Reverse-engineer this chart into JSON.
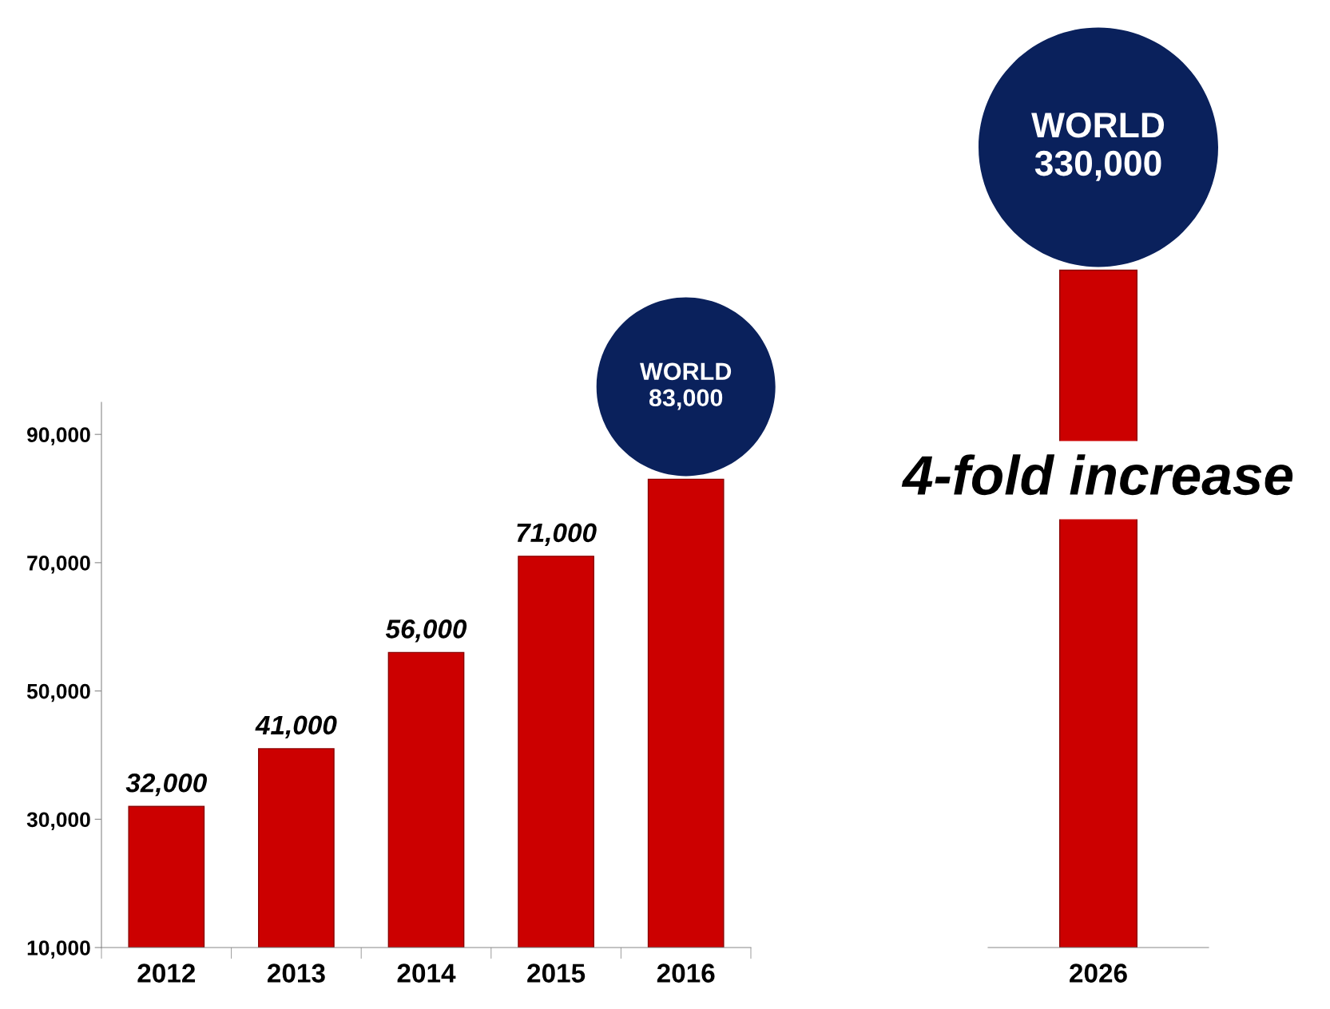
{
  "chart_data": [
    {
      "type": "bar",
      "categories": [
        "2012",
        "2013",
        "2014",
        "2015",
        "2016"
      ],
      "values": [
        32000,
        41000,
        56000,
        71000,
        83000
      ],
      "color": "#cc0000",
      "ylim": [
        10000,
        95000
      ],
      "yticks": [
        {
          "value": 10000,
          "label": "10,000"
        },
        {
          "value": 30000,
          "label": "30,000"
        },
        {
          "value": 50000,
          "label": "50,000"
        },
        {
          "value": 70000,
          "label": "70,000"
        },
        {
          "value": 90000,
          "label": "90,000"
        }
      ],
      "value_labels": [
        "32,000",
        "41,000",
        "56,000",
        "71,000",
        "WORLD\n83,000"
      ],
      "grid": false
    },
    {
      "type": "bar",
      "categories": [
        "2026"
      ],
      "values": [
        330000
      ],
      "color": "#cc0000",
      "value_labels": [
        "WORLD\n330,000"
      ],
      "annotations": [
        "4-fold increase"
      ],
      "grid": false
    }
  ]
}
